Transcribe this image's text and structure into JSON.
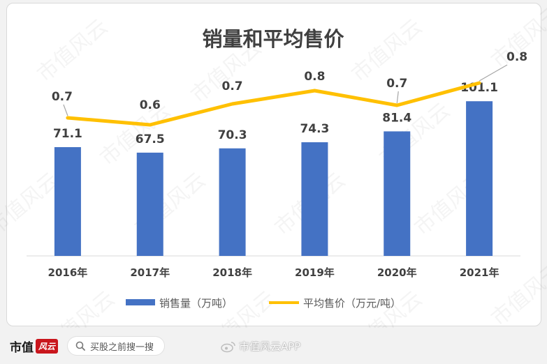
{
  "chart_data": {
    "type": "bar",
    "title": "销量和平均售价",
    "categories": [
      "2016年",
      "2017年",
      "2018年",
      "2019年",
      "2020年",
      "2021年"
    ],
    "series": [
      {
        "name": "销售量（万吨）",
        "type": "bar",
        "values": [
          71.1,
          67.5,
          70.3,
          74.3,
          81.4,
          101.1
        ],
        "labels": [
          "71.1",
          "67.5",
          "70.3",
          "74.3",
          "81.4",
          "101.1"
        ],
        "color": "#4472c4"
      },
      {
        "name": "平均售价（万元/吨）",
        "type": "line",
        "values": [
          0.7,
          0.6,
          0.7,
          0.8,
          0.7,
          0.8
        ],
        "labels": [
          "0.7",
          "0.6",
          "0.7",
          "0.8",
          "0.7",
          "0.8"
        ],
        "color": "#ffc000"
      }
    ],
    "grid": false,
    "legend": "bottom"
  },
  "footer": {
    "brand": "市值",
    "brand_badge": "风云",
    "search_placeholder": "买股之前搜一搜",
    "weibo_label": "市值风云APP"
  },
  "watermark": "市值风云"
}
